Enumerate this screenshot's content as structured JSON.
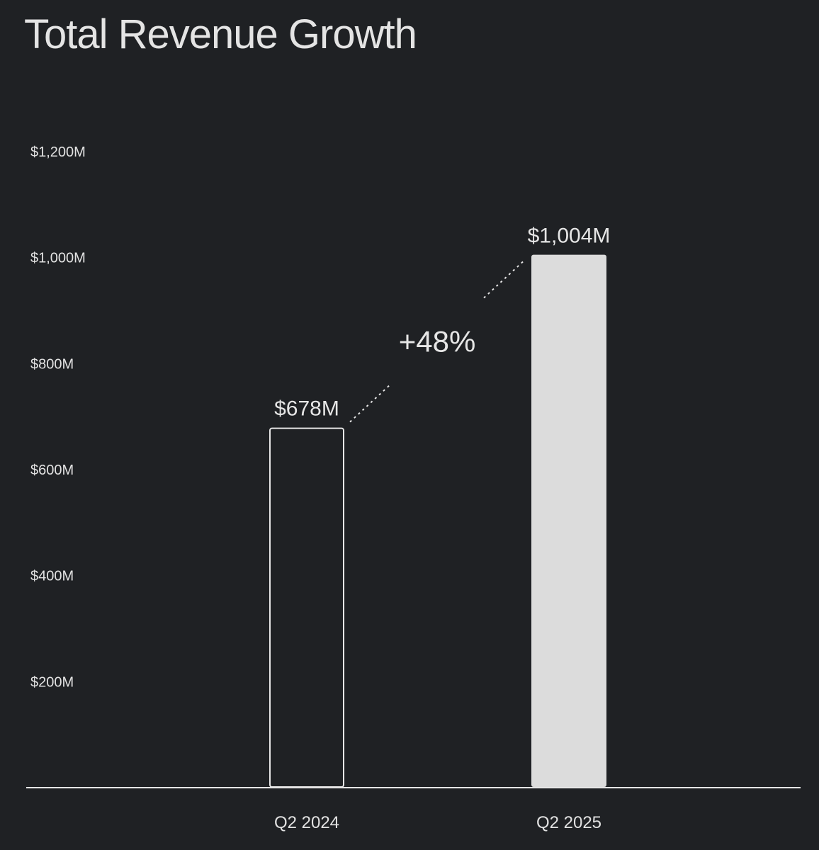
{
  "title": "Total Revenue Growth",
  "colors": {
    "background": "#1f2124",
    "text": "#e6e6e6",
    "bar_fill_current": "#dcdcdc",
    "bar_outline_prior": "#e6e6e6",
    "baseline": "#e6e6e6"
  },
  "chart_data": {
    "type": "bar",
    "title": "Total Revenue Growth",
    "xlabel": "",
    "ylabel": "",
    "unit": "$M",
    "categories": [
      "Q2 2024",
      "Q2 2025"
    ],
    "values": [
      678,
      1004
    ],
    "data_labels": [
      "$678M",
      "$1,004M"
    ],
    "bar_styles": [
      "outline",
      "filled"
    ],
    "ylim": [
      0,
      1200
    ],
    "yticks": [
      200,
      400,
      600,
      800,
      1000,
      1200
    ],
    "ytick_labels": [
      "$200M",
      "$400M",
      "$600M",
      "$800M",
      "$1,000M",
      "$1,200M"
    ],
    "grid": false,
    "annotation": {
      "text": "+48%",
      "from_category": "Q2 2024",
      "to_category": "Q2 2025",
      "style": "dotted-connector"
    }
  }
}
